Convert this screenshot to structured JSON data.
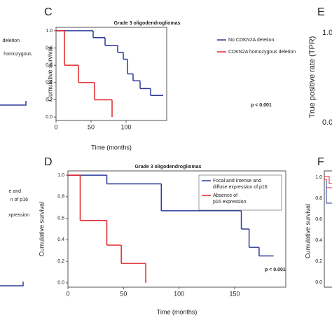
{
  "chart_data": [
    {
      "type": "step",
      "panel": "C",
      "title": "Grade 3 oligodendrogliomas",
      "ylabel": "Cumulative survival",
      "xlabel": "Time (months)",
      "annotation": "p < 0.001",
      "xlim": [
        0,
        158
      ],
      "xticks": [
        0,
        50,
        100
      ],
      "ylim": [
        -0.04,
        1.04
      ],
      "yticks": [
        {
          "value": 0,
          "label": "0.0"
        },
        0.2,
        0.4,
        0.6,
        0.8,
        {
          "value": 1,
          "label": "1.0"
        }
      ],
      "series": [
        {
          "name": "No CDKN2A deletion",
          "color": "#2b3a9b",
          "x": [
            0,
            53,
            70,
            88,
            96,
            102,
            110,
            120,
            135,
            153
          ],
          "values": [
            1,
            0.92,
            0.83,
            0.75,
            0.67,
            0.5,
            0.42,
            0.33,
            0.25,
            0.25
          ]
        },
        {
          "name": "CDKN2A homozygous deletion",
          "color": "#e0262a",
          "x": [
            0,
            12,
            32,
            55,
            80
          ],
          "values": [
            1,
            0.6,
            0.4,
            0.2,
            0
          ]
        }
      ]
    },
    {
      "type": "step",
      "panel": "D",
      "title": "Grade 3 oligodendrogliomas",
      "ylabel": "Cumulative survival",
      "xlabel": "Time (months)",
      "annotation": "p < 0.001",
      "xlim": [
        0,
        196
      ],
      "xticks": [
        0,
        50,
        100,
        150
      ],
      "ylim": [
        -0.04,
        1.04
      ],
      "yticks": [
        {
          "value": 0,
          "label": "0.0"
        },
        0.2,
        0.4,
        0.6,
        0.8,
        {
          "value": 1,
          "label": "1.0"
        }
      ],
      "series": [
        {
          "name": "Focal and intense and diffuse expression of p16",
          "color": "#2b3a9b",
          "x": [
            0,
            35,
            84,
            156,
            163,
            172,
            185
          ],
          "values": [
            1,
            0.92,
            0.67,
            0.5,
            0.33,
            0.25,
            0.25
          ]
        },
        {
          "name": "Absence of p16 expression",
          "color": "#e0262a",
          "x": [
            0,
            11,
            35,
            48,
            70
          ],
          "values": [
            1,
            0.58,
            0.35,
            0.18,
            0
          ]
        }
      ]
    }
  ],
  "fragments": {
    "left_top": [
      "deletion",
      "homozygous"
    ],
    "left_bottom": [
      "e and",
      "n of p16",
      "xpression"
    ],
    "panel_e": {
      "label": "E",
      "ylabel": "True positive rate (TPR)",
      "ticks": [
        "1.0",
        "0.0"
      ]
    },
    "panel_f": {
      "label": "F",
      "ylabel": "Cumulative survival",
      "ticks": [
        "1.0",
        "0.8",
        "0.6",
        "0.4",
        "0.2",
        "0.0"
      ]
    }
  }
}
